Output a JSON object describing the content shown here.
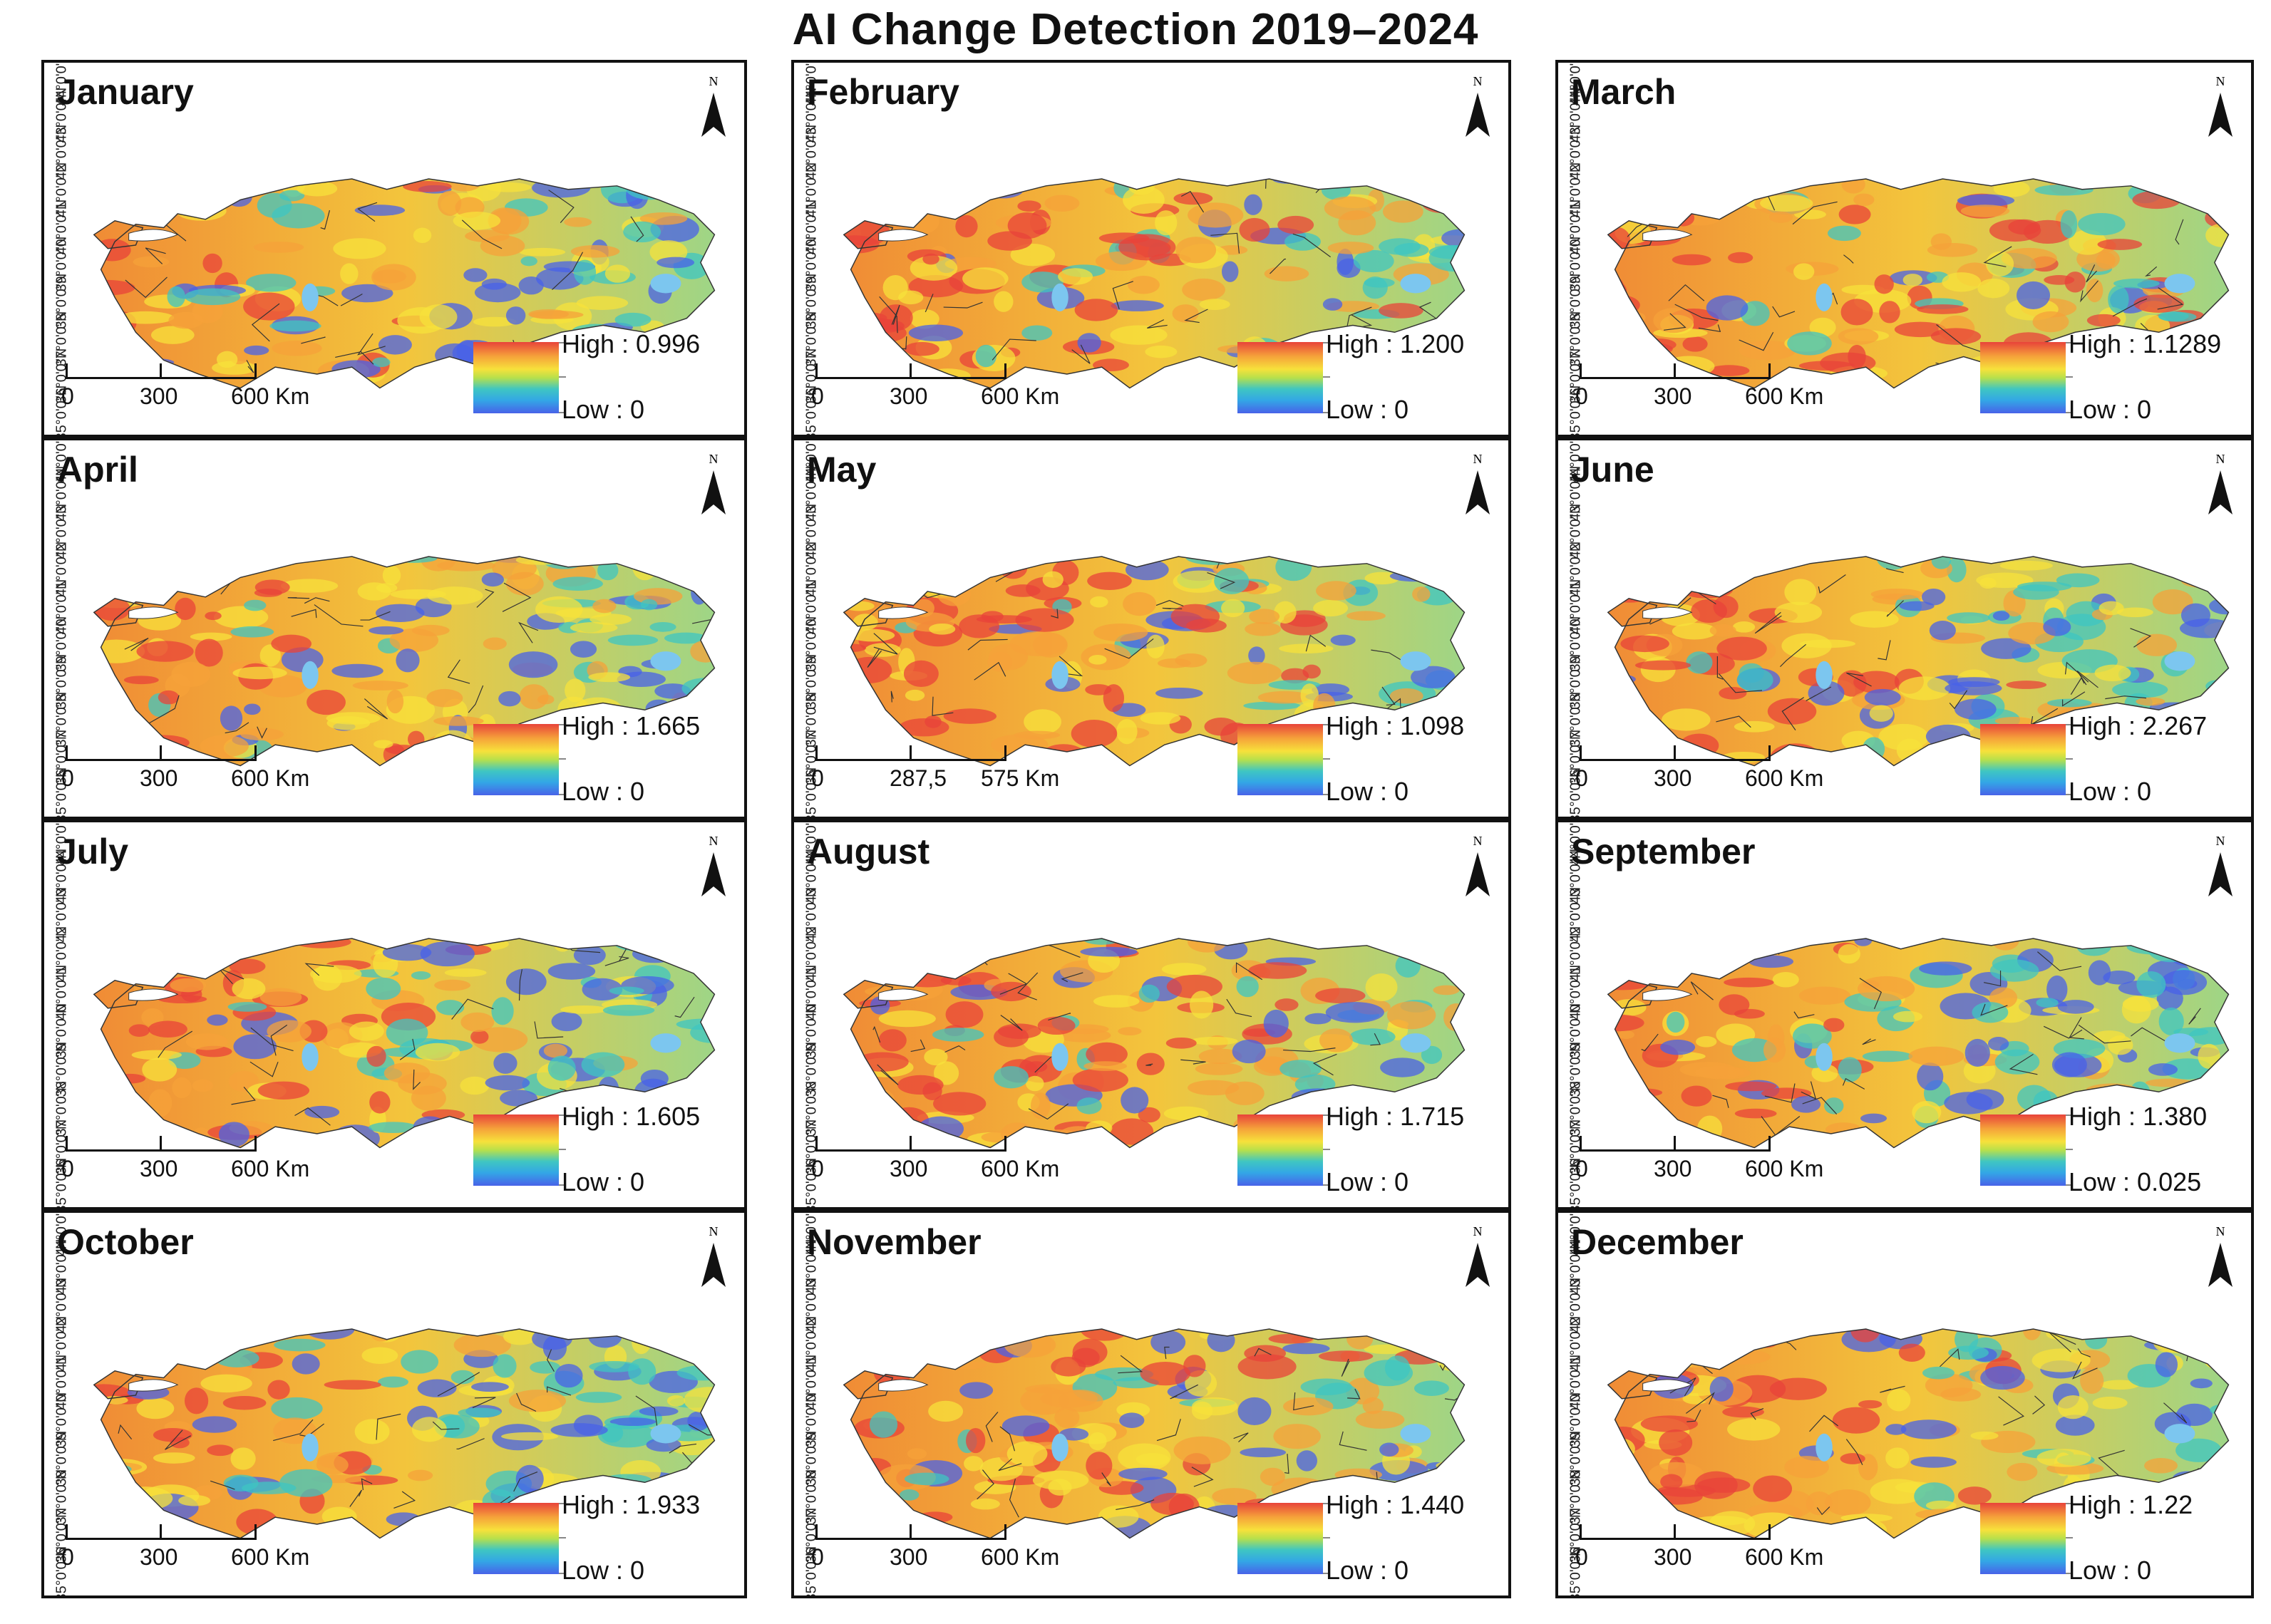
{
  "title": "AI  Change Detection 2019–2024",
  "north_label": "N",
  "latitudes": [
    "44°0'0\"N",
    "43°0'0\"N",
    "42°0'0\"N",
    "41°0'0\"N",
    "40°0'0\"N",
    "39°0'0\"N",
    "38°0'0\"N",
    "37°0'0\"N",
    "36°0'0\"N",
    "35°0'0\"N"
  ],
  "panels": [
    {
      "month": "January",
      "high": "High : 0.996",
      "low": "Low : 0",
      "scale": [
        "0",
        "300",
        "600 Km"
      ]
    },
    {
      "month": "February",
      "high": "High : 1.200",
      "low": "Low : 0",
      "scale": [
        "0",
        "300",
        "600 Km"
      ]
    },
    {
      "month": "March",
      "high": "High : 1.1289",
      "low": "Low : 0",
      "scale": [
        "0",
        "300",
        "600 Km"
      ]
    },
    {
      "month": "April",
      "high": "High : 1.665",
      "low": "Low : 0",
      "scale": [
        "0",
        "300",
        "600 Km"
      ]
    },
    {
      "month": "May",
      "high": "High : 1.098",
      "low": "Low : 0",
      "scale": [
        "0",
        "287,5",
        "575 Km"
      ]
    },
    {
      "month": "June",
      "high": "High : 2.267",
      "low": "Low : 0",
      "scale": [
        "0",
        "300",
        "600 Km"
      ]
    },
    {
      "month": "July",
      "high": "High : 1.605",
      "low": "Low : 0",
      "scale": [
        "0",
        "300",
        "600 Km"
      ]
    },
    {
      "month": "August",
      "high": "High : 1.715",
      "low": "Low : 0",
      "scale": [
        "0",
        "300",
        "600 Km"
      ]
    },
    {
      "month": "September",
      "high": "High : 1.380",
      "low": "Low : 0.025",
      "scale": [
        "0",
        "300",
        "600 Km"
      ]
    },
    {
      "month": "October",
      "high": "High : 1.933",
      "low": "Low : 0",
      "scale": [
        "0",
        "300",
        "600 Km"
      ]
    },
    {
      "month": "November",
      "high": "High : 1.440",
      "low": "Low : 0",
      "scale": [
        "0",
        "300",
        "600 Km"
      ]
    },
    {
      "month": "December",
      "high": "High : 1.22",
      "low": "Low : 0",
      "scale": [
        "0",
        "300",
        "600 Km"
      ]
    }
  ],
  "colors": {
    "high": "#e8433a",
    "mid": "#f7e13b",
    "low": "#4862e8",
    "water": "#7cc6ef"
  }
}
